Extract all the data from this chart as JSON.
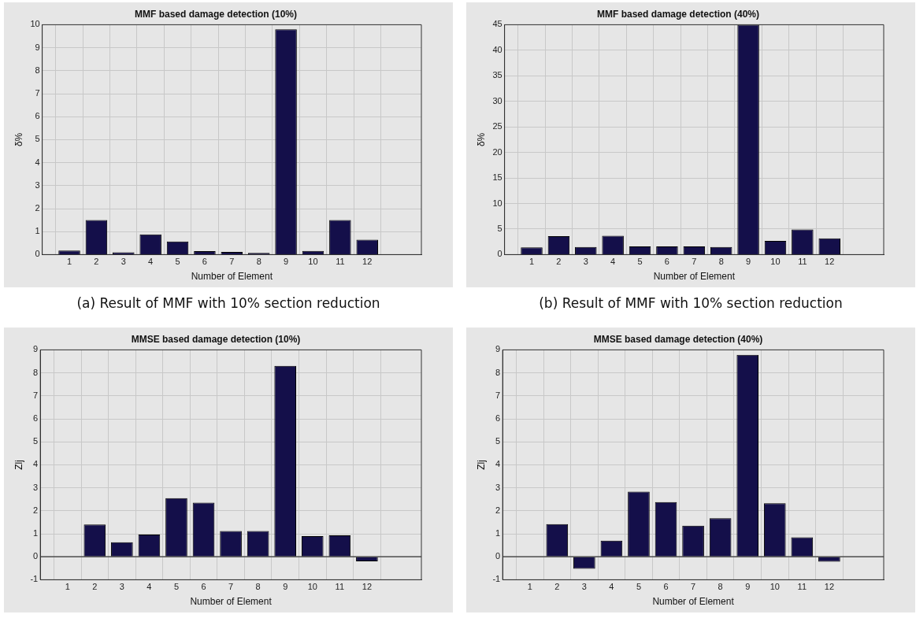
{
  "chart_data": [
    {
      "type": "bar",
      "title": "MMF based damage detection (10%)",
      "xlabel": "Number of Element",
      "ylabel": "δ%",
      "x": [
        1,
        2,
        3,
        4,
        5,
        6,
        7,
        8,
        9,
        10,
        11,
        12
      ],
      "series": [
        {
          "color": "#140f4a",
          "values": [
            0.18,
            1.5,
            0.1,
            0.88,
            0.57,
            0.15,
            0.12,
            0.07,
            9.8,
            0.16,
            1.5,
            0.65
          ]
        }
      ],
      "xlim": [
        0,
        14
      ],
      "xticks": [
        1,
        2,
        3,
        4,
        5,
        6,
        7,
        8,
        9,
        10,
        11,
        12
      ],
      "ylim": [
        0,
        10
      ],
      "yticks": [
        0,
        1,
        2,
        3,
        4,
        5,
        6,
        7,
        8,
        9,
        10
      ],
      "grid": true,
      "annotations": [
        "(a) Result of MMF with 10% section reduction"
      ]
    },
    {
      "type": "bar",
      "title": "MMF based damage detection (40%)",
      "xlabel": "Number of Element",
      "ylabel": "δ%",
      "x": [
        1,
        2,
        3,
        4,
        5,
        6,
        7,
        8,
        9,
        10,
        11,
        12
      ],
      "series": [
        {
          "color": "#140f4a",
          "values": [
            1.4,
            3.6,
            1.5,
            3.7,
            1.6,
            1.6,
            1.6,
            1.5,
            45,
            2.7,
            4.9,
            3.2
          ]
        }
      ],
      "xlim": [
        0,
        14
      ],
      "xticks": [
        1,
        2,
        3,
        4,
        5,
        6,
        7,
        8,
        9,
        10,
        11,
        12
      ],
      "ylim": [
        0,
        45
      ],
      "yticks": [
        0,
        5,
        10,
        15,
        20,
        25,
        30,
        35,
        40,
        45
      ],
      "grid": true,
      "annotations": [
        "(b) Result of MMF with 10% section reduction"
      ]
    },
    {
      "type": "bar",
      "title": "MMSE based damage detection (10%)",
      "xlabel": "Number of Element",
      "ylabel": "Zlj",
      "x": [
        1,
        2,
        3,
        4,
        5,
        6,
        7,
        8,
        9,
        10,
        11,
        12
      ],
      "series": [
        {
          "color": "#140f4a",
          "values": [
            0,
            1.4,
            0.63,
            0.97,
            2.55,
            2.35,
            1.12,
            1.12,
            8.3,
            0.9,
            0.93,
            -0.2
          ]
        }
      ],
      "xlim": [
        0,
        14
      ],
      "xticks": [
        1,
        2,
        3,
        4,
        5,
        6,
        7,
        8,
        9,
        10,
        11,
        12
      ],
      "ylim": [
        -1,
        9
      ],
      "yticks": [
        -1,
        0,
        1,
        2,
        3,
        4,
        5,
        6,
        7,
        8,
        9
      ],
      "grid": true,
      "ref_lines": [
        {
          "axis": "y",
          "value": 0,
          "color": "#333333"
        }
      ]
    },
    {
      "type": "bar",
      "title": "MMSE based damage detection (40%)",
      "xlabel": "Number of Element",
      "ylabel": "Zlj",
      "x": [
        1,
        2,
        3,
        4,
        5,
        6,
        7,
        8,
        9,
        10,
        11,
        12
      ],
      "series": [
        {
          "color": "#140f4a",
          "values": [
            0,
            1.42,
            -0.52,
            0.7,
            2.83,
            2.38,
            1.35,
            1.68,
            8.78,
            2.33,
            0.85,
            -0.22
          ]
        }
      ],
      "xlim": [
        0,
        14
      ],
      "xticks": [
        1,
        2,
        3,
        4,
        5,
        6,
        7,
        8,
        9,
        10,
        11,
        12
      ],
      "ylim": [
        -1,
        9
      ],
      "yticks": [
        -1,
        0,
        1,
        2,
        3,
        4,
        5,
        6,
        7,
        8,
        9
      ],
      "grid": true,
      "ref_lines": [
        {
          "axis": "y",
          "value": 0,
          "color": "#333333"
        }
      ]
    }
  ]
}
